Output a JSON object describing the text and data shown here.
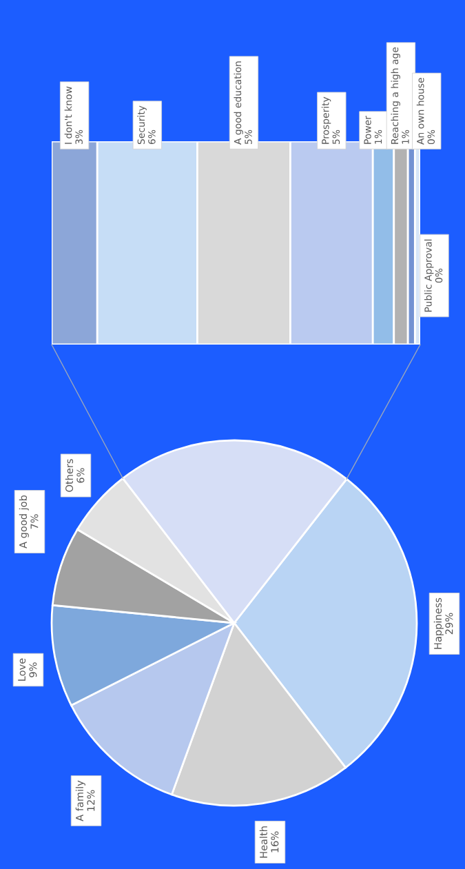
{
  "chart_data": [
    {
      "type": "pie",
      "categories": [
        "Happiness",
        "Health",
        "A family",
        "Love",
        "A good job",
        "Others",
        null
      ],
      "values": [
        29,
        16,
        12,
        9,
        7,
        6,
        21
      ],
      "colors": [
        "#b9d4f4",
        "#d2d2d2",
        "#b6c8ee",
        "#7ea8dc",
        "#a2a2a2",
        "#e2e2e2",
        "#d6def6"
      ],
      "value_labels": [
        "29%",
        "16%",
        "12%",
        "9%",
        "7%",
        "6%",
        null
      ]
    },
    {
      "type": "bar",
      "orientation": "horizontal",
      "stacked": true,
      "categories": [
        null
      ],
      "series": [
        {
          "name": "I don't know",
          "color": "#8ca6d8",
          "values": [
            2.6
          ],
          "value_labels": [
            "3%"
          ]
        },
        {
          "name": "Security",
          "color": "#c6ddf6",
          "values": [
            5.7
          ],
          "value_labels": [
            "6%"
          ]
        },
        {
          "name": "A good education",
          "color": "#d9d9d9",
          "values": [
            5.3
          ],
          "value_labels": [
            "5%"
          ]
        },
        {
          "name": "Prosperity",
          "color": "#bacaf0",
          "values": [
            4.7
          ],
          "value_labels": [
            "5%"
          ]
        },
        {
          "name": "Power",
          "color": "#92bde8",
          "values": [
            1.2
          ],
          "value_labels": [
            "1%"
          ]
        },
        {
          "name": "Reaching a high age",
          "color": "#b2b2b2",
          "values": [
            0.8
          ],
          "value_labels": [
            "1%"
          ]
        },
        {
          "name": "An own house",
          "color": "#7292d2",
          "values": [
            0.4
          ],
          "value_labels": [
            "0%"
          ]
        },
        {
          "name": "Public Approval",
          "color": "#d6e6f8",
          "values": [
            0.3
          ],
          "value_labels": [
            "0%"
          ]
        }
      ]
    }
  ]
}
